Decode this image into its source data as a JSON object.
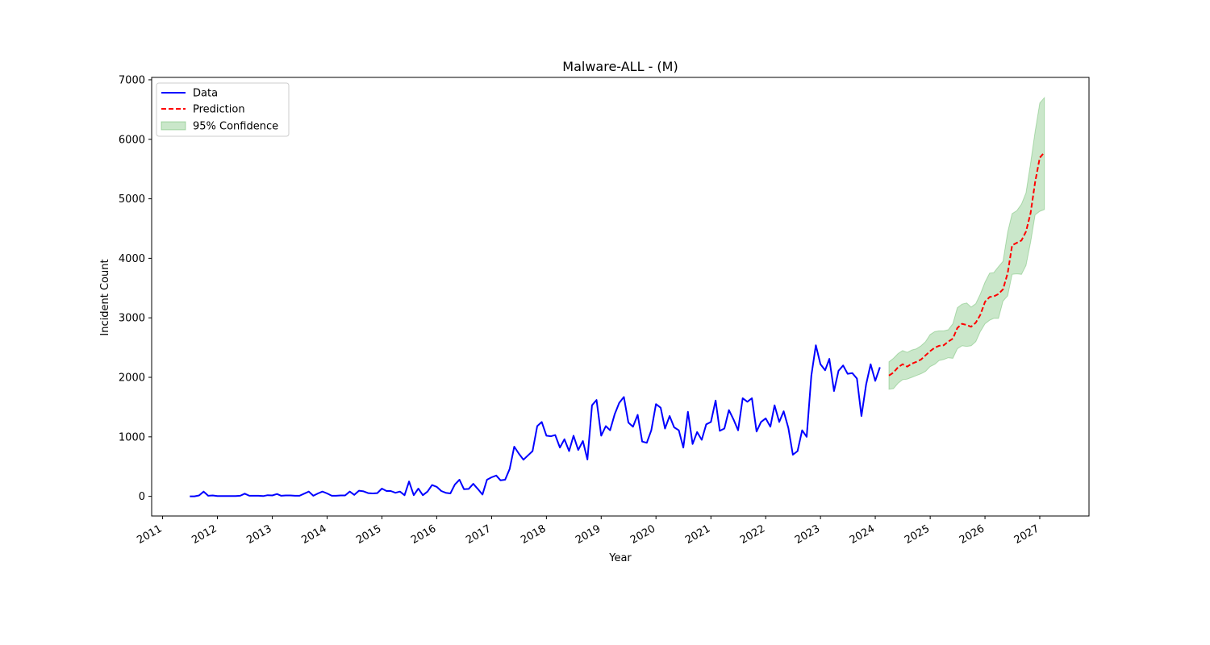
{
  "chart_data": {
    "type": "line",
    "title": "Malware-ALL - (M)",
    "xlabel": "Year",
    "ylabel": "Incident Count",
    "x_ticks": [
      "2011",
      "2012",
      "2013",
      "2014",
      "2015",
      "2016",
      "2017",
      "2018",
      "2019",
      "2020",
      "2021",
      "2022",
      "2023",
      "2024",
      "2025",
      "2026",
      "2027"
    ],
    "y_ticks": [
      0,
      1000,
      2000,
      3000,
      4000,
      5000,
      6000,
      7000
    ],
    "xlim": [
      "2010-10-20",
      "2027-11-25"
    ],
    "ylim": [
      -330,
      7040
    ],
    "grid": false,
    "legend_position": "top-left",
    "legend": {
      "data_label": "Data",
      "prediction_label": "Prediction",
      "confidence_label": "95% Confidence"
    },
    "colors": {
      "data": "#0000ff",
      "prediction": "#ff0000",
      "confidence": "#2ca02c"
    },
    "series": [
      {
        "name": "Data",
        "style": "solid",
        "start": "2011-07",
        "values": [
          0,
          0,
          15,
          80,
          10,
          15,
          5,
          5,
          5,
          5,
          5,
          10,
          45,
          10,
          10,
          10,
          5,
          20,
          15,
          40,
          10,
          15,
          15,
          10,
          10,
          45,
          80,
          10,
          50,
          80,
          50,
          10,
          10,
          15,
          15,
          80,
          25,
          95,
          85,
          55,
          50,
          55,
          130,
          90,
          90,
          60,
          80,
          20,
          250,
          20,
          130,
          20,
          80,
          190,
          160,
          90,
          60,
          50,
          200,
          280,
          120,
          125,
          210,
          125,
          30,
          280,
          320,
          350,
          270,
          280,
          460,
          835,
          720,
          615,
          690,
          760,
          1180,
          1250,
          1020,
          1010,
          1030,
          820,
          960,
          760,
          1020,
          780,
          930,
          620,
          1530,
          1620,
          1020,
          1180,
          1110,
          1380,
          1570,
          1670,
          1240,
          1170,
          1370,
          920,
          900,
          1110,
          1550,
          1490,
          1140,
          1350,
          1160,
          1110,
          820,
          1420,
          880,
          1080,
          950,
          1210,
          1250,
          1610,
          1100,
          1140,
          1450,
          1290,
          1110,
          1650,
          1590,
          1650,
          1090,
          1250,
          1310,
          1170,
          1530,
          1250,
          1430,
          1150,
          700,
          760,
          1110,
          1000,
          2030,
          2540,
          2220,
          2120,
          2310,
          1770,
          2110,
          2200,
          2060,
          2070,
          1980,
          1350,
          1880,
          2220,
          1940,
          2170
        ]
      },
      {
        "name": "Prediction",
        "style": "dashed",
        "start": "2024-04",
        "values": [
          2030,
          2080,
          2170,
          2220,
          2180,
          2230,
          2260,
          2300,
          2370,
          2440,
          2500,
          2530,
          2540,
          2600,
          2650,
          2830,
          2900,
          2880,
          2850,
          2920,
          3050,
          3270,
          3350,
          3360,
          3400,
          3480,
          3750,
          4220,
          4260,
          4300,
          4450,
          4760,
          5280,
          5690,
          5780
        ]
      }
    ],
    "confidence_band": {
      "name": "95% Confidence",
      "start": "2024-04",
      "lower": [
        1800,
        1810,
        1900,
        1960,
        1970,
        2000,
        2030,
        2060,
        2100,
        2180,
        2220,
        2280,
        2300,
        2330,
        2320,
        2480,
        2530,
        2520,
        2530,
        2600,
        2770,
        2900,
        2960,
        2990,
        2990,
        3280,
        3370,
        3730,
        3740,
        3730,
        3880,
        4270,
        4730,
        4790,
        4820
      ],
      "upper": [
        2260,
        2320,
        2400,
        2450,
        2420,
        2460,
        2480,
        2530,
        2600,
        2720,
        2770,
        2780,
        2780,
        2800,
        2900,
        3170,
        3230,
        3250,
        3180,
        3240,
        3400,
        3600,
        3750,
        3760,
        3860,
        3950,
        4440,
        4750,
        4800,
        4910,
        5100,
        5600,
        6130,
        6610,
        6700
      ]
    }
  }
}
